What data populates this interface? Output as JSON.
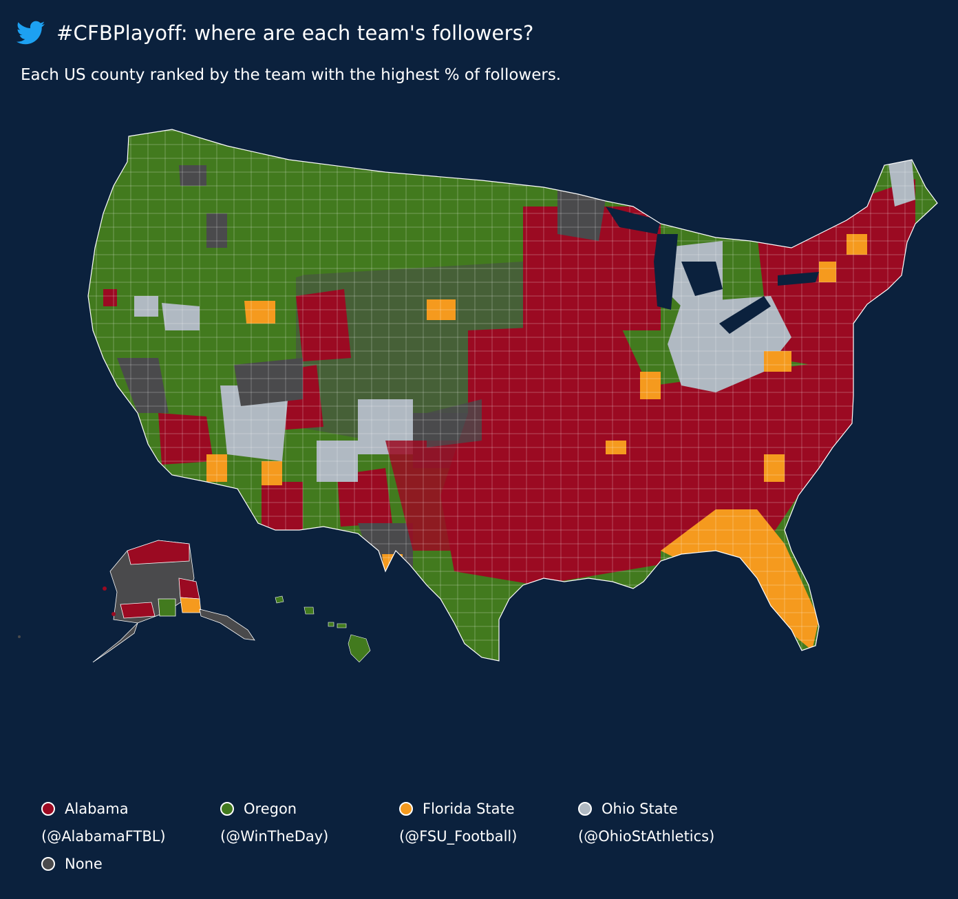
{
  "header": {
    "title": "#CFBPlayoff: where are each team's followers?",
    "subtitle": "Each US county ranked by the team with the highest % of followers.",
    "icon": "twitter-bird-icon"
  },
  "colors": {
    "background": "#0b213d",
    "alabama": "#9b0a22",
    "oregon": "#427a1e",
    "florida_state": "#f59a1e",
    "ohio_state": "#b0b9c2",
    "none": "#4a4a4c",
    "twitter_blue": "#1da1f2"
  },
  "legend": [
    {
      "label": "Alabama",
      "handle": "(@AlabamaFTBL)",
      "color": "#9b0a22"
    },
    {
      "label": "Oregon",
      "handle": "(@WinTheDay)",
      "color": "#427a1e"
    },
    {
      "label": "Florida State",
      "handle": "(@FSU_Football)",
      "color": "#f59a1e"
    },
    {
      "label": "Ohio State",
      "handle": "(@OhioStAthletics)",
      "color": "#b0b9c2"
    },
    {
      "label": "None",
      "handle": "",
      "color": "#4a4a4c"
    }
  ]
}
